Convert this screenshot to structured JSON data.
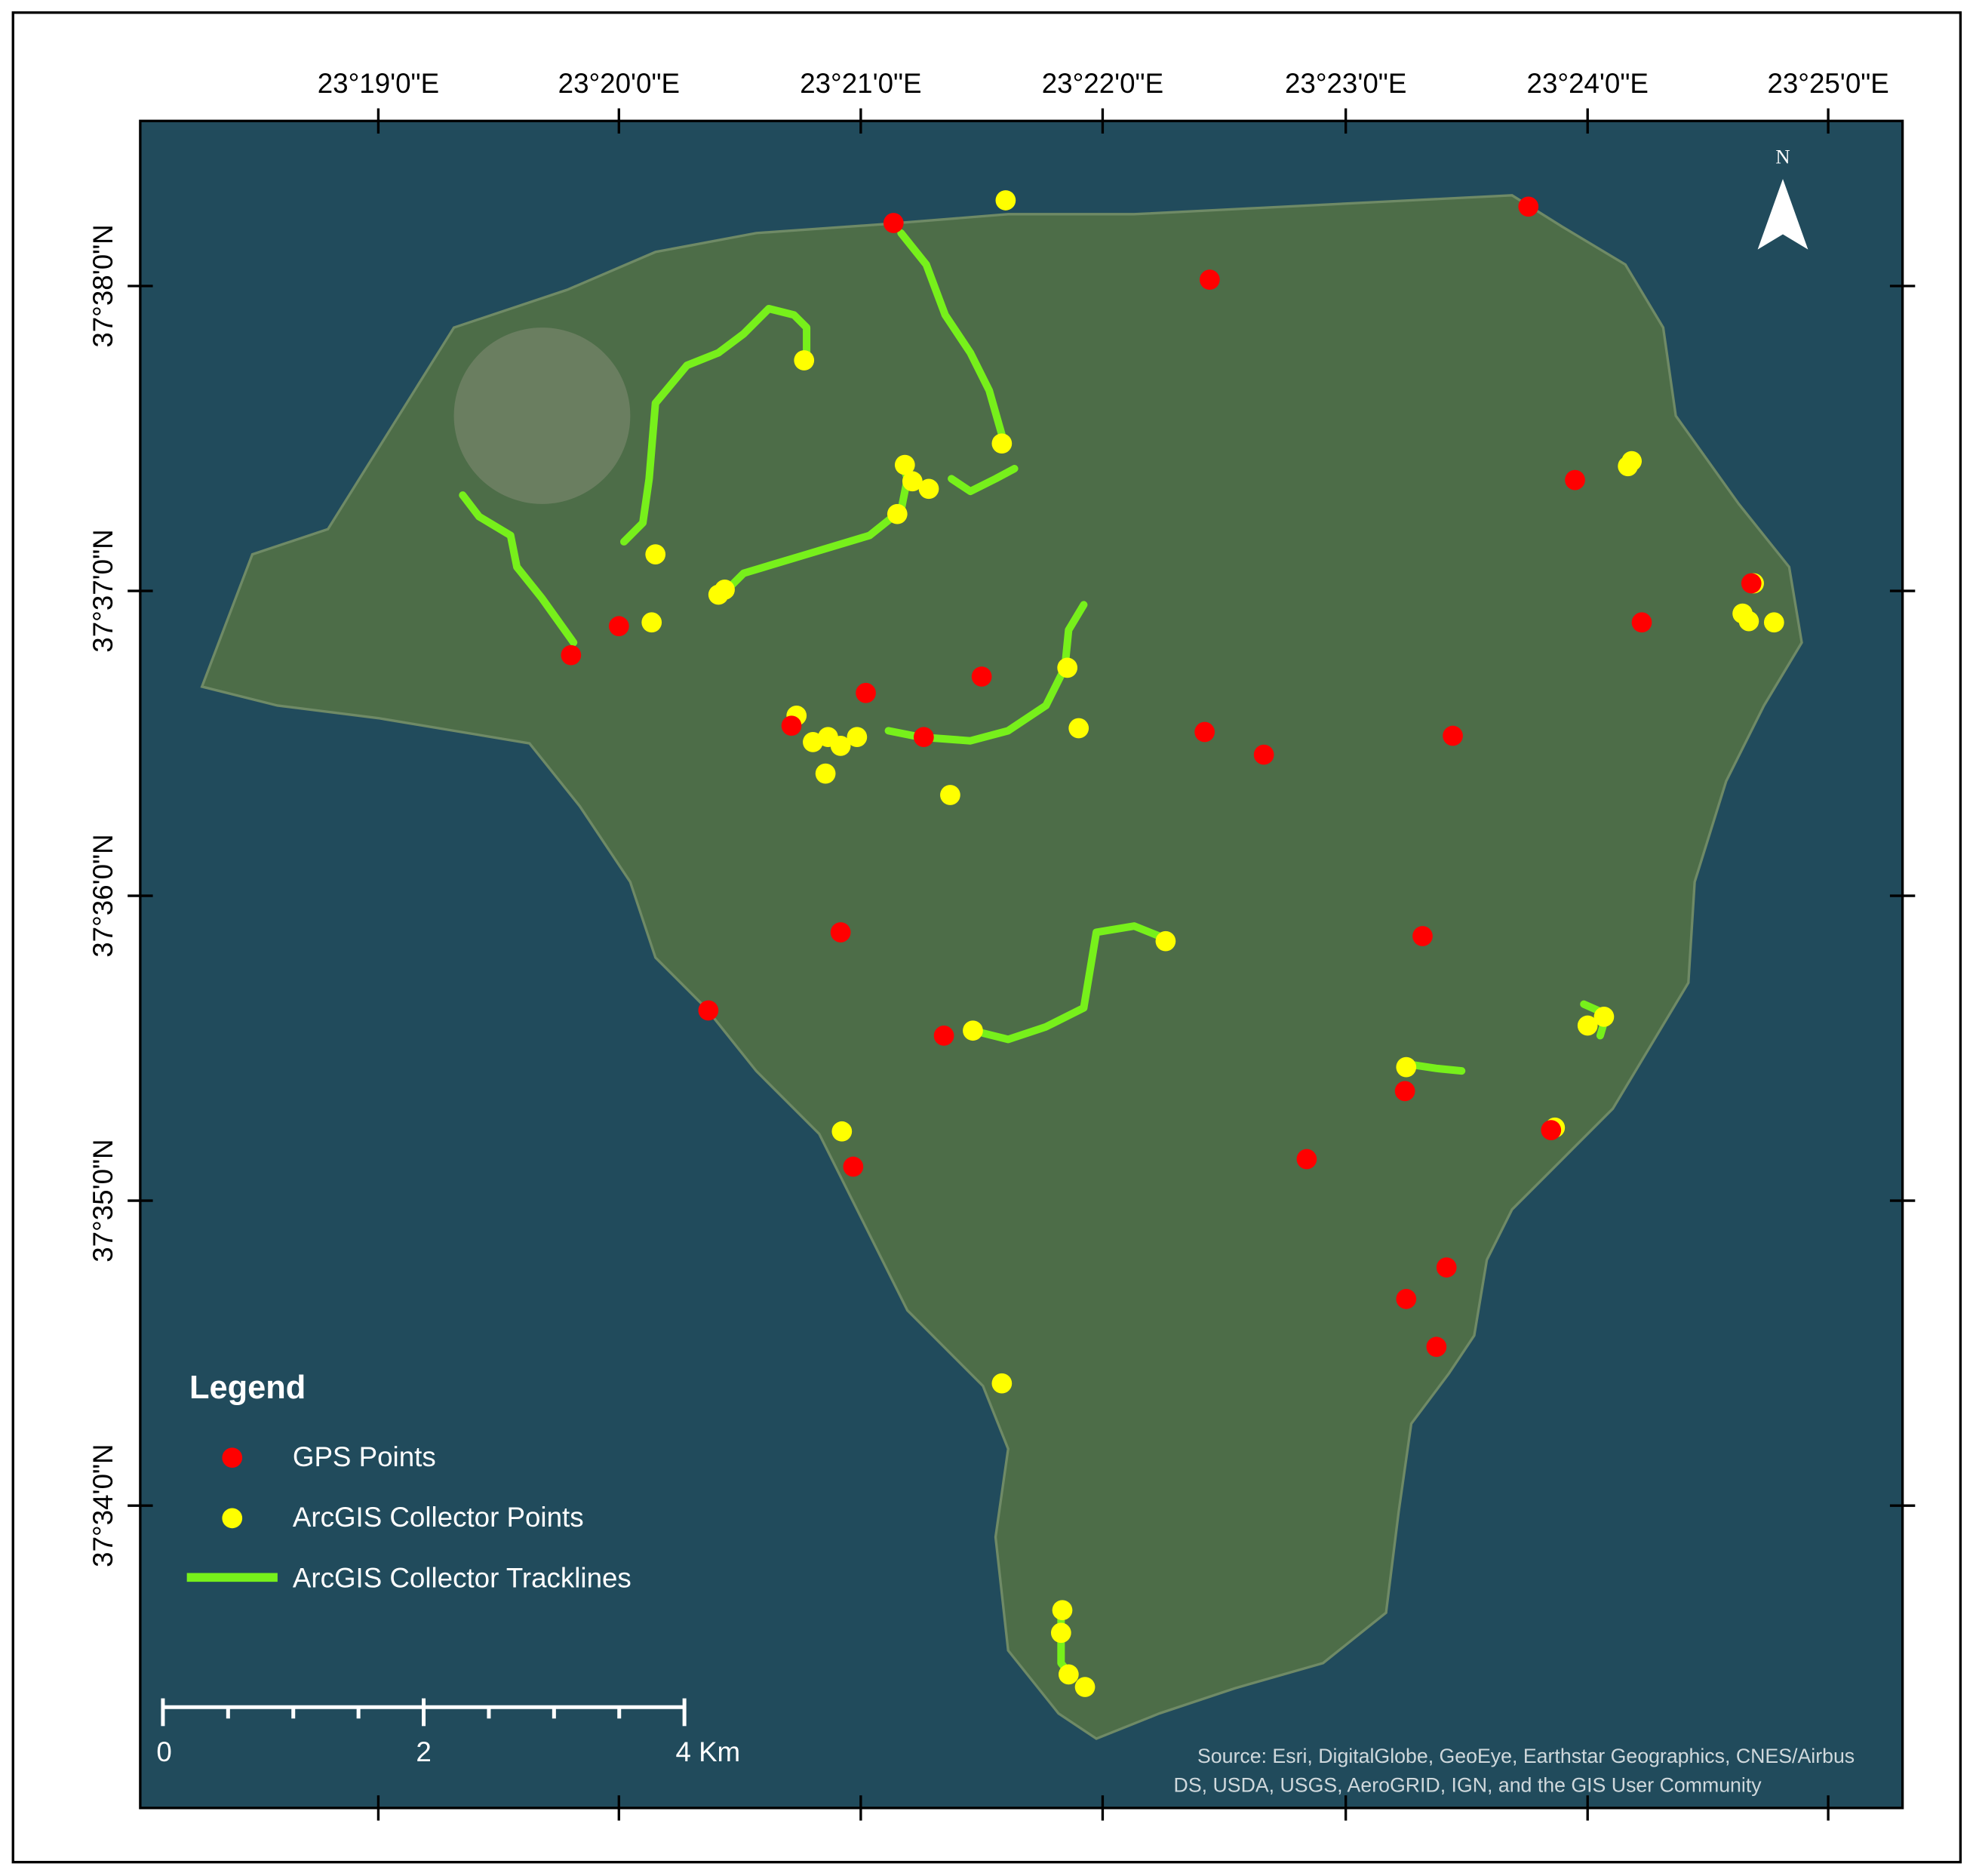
{
  "map": {
    "top_labels": [
      "23°19'0\"E",
      "23°20'0\"E",
      "23°21'0\"E",
      "23°22'0\"E",
      "23°23'0\"E",
      "23°24'0\"E",
      "23°25'0\"E"
    ],
    "left_labels": [
      "37°38'0\"N",
      "37°37'0\"N",
      "37°36'0\"N",
      "37°35'0\"N",
      "37°34'0\"N"
    ],
    "north": "N",
    "legend": {
      "title": "Legend",
      "items": [
        "GPS Points",
        "ArcGIS Collector Points",
        "ArcGIS Collector Tracklines"
      ]
    },
    "scale_bar": {
      "labels": [
        "0",
        "2",
        "4 Km"
      ]
    },
    "source": [
      "Source: Esri, DigitalGlobe, GeoEye, Earthstar Geographics, CNES/Airbus",
      "DS, USDA, USGS, AeroGRID, IGN, and the GIS User Community"
    ]
  }
}
